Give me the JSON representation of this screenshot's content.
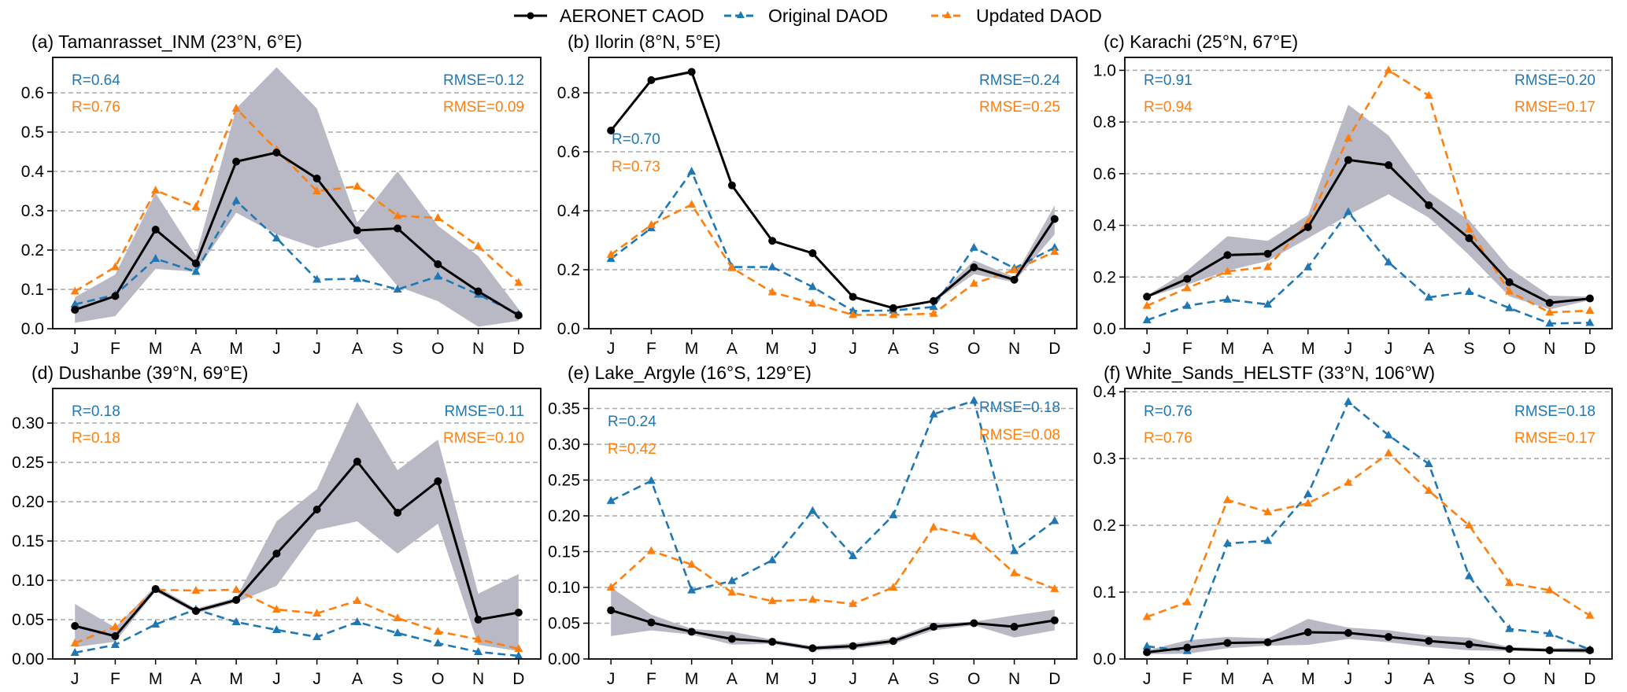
{
  "legend": {
    "entries": [
      {
        "key": "aeronet",
        "label": "AERONET CAOD",
        "color": "#000000",
        "style": "solid",
        "marker": "circle"
      },
      {
        "key": "original",
        "label": "Original DAOD",
        "color": "#1f77b4",
        "style": "dashed",
        "marker": "triangle"
      },
      {
        "key": "updated",
        "label": "Updated DAOD",
        "color": "#ff7f0e",
        "style": "dashed",
        "marker": "triangle"
      }
    ],
    "placement": "top-center"
  },
  "colors": {
    "aeronet": "#000000",
    "original": "#1f77b4",
    "updated": "#ff7f0e",
    "band": "#b9b9c6",
    "grid": "#a8a8a8"
  },
  "chart_data": [
    {
      "type": "line",
      "panel": "a",
      "title": "(a) Tamanrasset_INM (23°N, 6°E)",
      "x": [
        "J",
        "F",
        "M",
        "A",
        "M",
        "J",
        "J",
        "A",
        "S",
        "O",
        "N",
        "D"
      ],
      "ylim": [
        0.0,
        0.69
      ],
      "yticks": [
        0.0,
        0.1,
        0.2,
        0.3,
        0.4,
        0.5,
        0.6
      ],
      "ytick_labels": [
        "0.0",
        "0.1",
        "0.2",
        "0.3",
        "0.4",
        "0.5",
        "0.6"
      ],
      "grid": "horizontal-dashed",
      "series": [
        {
          "name": "AERONET CAOD",
          "key": "aeronet",
          "values": [
            0.048,
            0.083,
            0.252,
            0.166,
            0.425,
            0.448,
            0.382,
            0.25,
            0.255,
            0.164,
            0.095,
            0.034
          ],
          "band_low": [
            0.015,
            0.032,
            0.152,
            0.145,
            0.295,
            0.24,
            0.205,
            0.23,
            0.108,
            0.07,
            0.005,
            0.02
          ],
          "band_high": [
            0.08,
            0.138,
            0.345,
            0.185,
            0.56,
            0.665,
            0.56,
            0.27,
            0.4,
            0.262,
            0.185,
            0.05
          ]
        },
        {
          "name": "Original DAOD",
          "key": "original",
          "values": [
            0.062,
            0.086,
            0.178,
            0.145,
            0.325,
            0.23,
            0.125,
            0.127,
            0.1,
            0.133,
            0.087,
            0.037
          ]
        },
        {
          "name": "Updated DAOD",
          "key": "updated",
          "values": [
            0.095,
            0.157,
            0.352,
            0.31,
            0.56,
            0.455,
            0.35,
            0.362,
            0.287,
            0.282,
            0.21,
            0.117
          ]
        }
      ],
      "stats": {
        "r_original": "R=0.64",
        "r_updated": "R=0.76",
        "rmse_original": "RMSE=0.12",
        "rmse_updated": "RMSE=0.09"
      }
    },
    {
      "type": "line",
      "panel": "b",
      "title": "(b) Ilorin (8°N, 5°E)",
      "x": [
        "J",
        "F",
        "M",
        "A",
        "M",
        "J",
        "J",
        "A",
        "S",
        "O",
        "N",
        "D"
      ],
      "ylim": [
        0.0,
        0.92
      ],
      "yticks": [
        0.0,
        0.2,
        0.4,
        0.6,
        0.8
      ],
      "ytick_labels": [
        "0.0",
        "0.2",
        "0.4",
        "0.6",
        "0.8"
      ],
      "grid": "horizontal-dashed",
      "series": [
        {
          "name": "AERONET CAOD",
          "key": "aeronet",
          "values": [
            0.672,
            0.843,
            0.871,
            0.486,
            0.298,
            0.256,
            0.108,
            0.07,
            0.094,
            0.208,
            0.166,
            0.372
          ],
          "band_low": [
            0.668,
            0.838,
            0.866,
            0.482,
            0.294,
            0.252,
            0.104,
            0.066,
            0.09,
            0.185,
            0.158,
            0.32
          ],
          "band_high": [
            0.676,
            0.848,
            0.876,
            0.49,
            0.302,
            0.26,
            0.112,
            0.074,
            0.098,
            0.232,
            0.175,
            0.418
          ]
        },
        {
          "name": "Original DAOD",
          "key": "original",
          "values": [
            0.237,
            0.341,
            0.533,
            0.209,
            0.209,
            0.142,
            0.06,
            0.062,
            0.074,
            0.275,
            0.205,
            0.275
          ]
        },
        {
          "name": "Updated DAOD",
          "key": "updated",
          "values": [
            0.251,
            0.352,
            0.421,
            0.206,
            0.124,
            0.086,
            0.047,
            0.047,
            0.051,
            0.153,
            0.199,
            0.261
          ]
        }
      ],
      "stats": {
        "r_original": "R=0.70",
        "r_updated": "R=0.73",
        "rmse_original": "RMSE=0.24",
        "rmse_updated": "RMSE=0.25"
      }
    },
    {
      "type": "line",
      "panel": "c",
      "title": "(c) Karachi (25°N, 67°E)",
      "x": [
        "J",
        "F",
        "M",
        "A",
        "M",
        "J",
        "J",
        "A",
        "S",
        "O",
        "N",
        "D"
      ],
      "ylim": [
        0.0,
        1.05
      ],
      "yticks": [
        0.0,
        0.2,
        0.4,
        0.6,
        0.8,
        1.0
      ],
      "ytick_labels": [
        "0.0",
        "0.2",
        "0.4",
        "0.6",
        "0.8",
        "1.0"
      ],
      "grid": "horizontal-dashed",
      "series": [
        {
          "name": "AERONET CAOD",
          "key": "aeronet",
          "values": [
            0.124,
            0.193,
            0.285,
            0.29,
            0.393,
            0.653,
            0.633,
            0.478,
            0.35,
            0.18,
            0.1,
            0.117
          ],
          "band_low": [
            0.12,
            0.17,
            0.225,
            0.262,
            0.35,
            0.44,
            0.52,
            0.43,
            0.285,
            0.125,
            0.075,
            0.11
          ],
          "band_high": [
            0.128,
            0.225,
            0.358,
            0.34,
            0.44,
            0.867,
            0.748,
            0.528,
            0.42,
            0.235,
            0.128,
            0.124
          ]
        },
        {
          "name": "Original DAOD",
          "key": "original",
          "values": [
            0.033,
            0.089,
            0.113,
            0.094,
            0.238,
            0.452,
            0.257,
            0.121,
            0.143,
            0.08,
            0.02,
            0.023
          ]
        },
        {
          "name": "Updated DAOD",
          "key": "updated",
          "values": [
            0.089,
            0.157,
            0.222,
            0.239,
            0.413,
            0.737,
            1.0,
            0.902,
            0.385,
            0.144,
            0.063,
            0.07
          ]
        }
      ],
      "stats": {
        "r_original": "R=0.91",
        "r_updated": "R=0.94",
        "rmse_original": "RMSE=0.20",
        "rmse_updated": "RMSE=0.17"
      }
    },
    {
      "type": "line",
      "panel": "d",
      "title": "(d) Dushanbe (39°N, 69°E)",
      "x": [
        "J",
        "F",
        "M",
        "A",
        "M",
        "J",
        "J",
        "A",
        "S",
        "O",
        "N",
        "D"
      ],
      "ylim": [
        0.0,
        0.344
      ],
      "yticks": [
        0.0,
        0.05,
        0.1,
        0.15,
        0.2,
        0.25,
        0.3
      ],
      "ytick_labels": [
        "0.00",
        "0.05",
        "0.10",
        "0.15",
        "0.20",
        "0.25",
        "0.30"
      ],
      "grid": "horizontal-dashed",
      "series": [
        {
          "name": "AERONET CAOD",
          "key": "aeronet",
          "values": [
            0.042,
            0.029,
            0.089,
            0.061,
            0.075,
            0.134,
            0.19,
            0.251,
            0.186,
            0.226,
            0.05,
            0.059
          ],
          "band_low": [
            0.015,
            0.022,
            0.086,
            0.058,
            0.072,
            0.093,
            0.164,
            0.175,
            0.134,
            0.172,
            0.018,
            0.01
          ],
          "band_high": [
            0.07,
            0.04,
            0.093,
            0.064,
            0.078,
            0.175,
            0.216,
            0.327,
            0.24,
            0.279,
            0.083,
            0.108
          ]
        },
        {
          "name": "Original DAOD",
          "key": "original",
          "values": [
            0.008,
            0.018,
            0.044,
            0.063,
            0.047,
            0.037,
            0.028,
            0.047,
            0.033,
            0.02,
            0.009,
            0.004
          ]
        },
        {
          "name": "Updated DAOD",
          "key": "updated",
          "values": [
            0.02,
            0.041,
            0.088,
            0.087,
            0.088,
            0.063,
            0.058,
            0.074,
            0.052,
            0.035,
            0.025,
            0.013
          ]
        }
      ],
      "stats": {
        "r_original": "R=0.18",
        "r_updated": "R=0.18",
        "rmse_original": "RMSE=0.11",
        "rmse_updated": "RMSE=0.10"
      }
    },
    {
      "type": "line",
      "panel": "e",
      "title": "(e) Lake_Argyle (16°S, 129°E)",
      "x": [
        "J",
        "F",
        "M",
        "A",
        "M",
        "J",
        "J",
        "A",
        "S",
        "O",
        "N",
        "D"
      ],
      "ylim": [
        0.0,
        0.378
      ],
      "yticks": [
        0.0,
        0.05,
        0.1,
        0.15,
        0.2,
        0.25,
        0.3,
        0.35
      ],
      "ytick_labels": [
        "0.00",
        "0.05",
        "0.10",
        "0.15",
        "0.20",
        "0.25",
        "0.30",
        "0.35"
      ],
      "grid": "horizontal-dashed",
      "series": [
        {
          "name": "AERONET CAOD",
          "key": "aeronet",
          "values": [
            0.068,
            0.051,
            0.038,
            0.028,
            0.024,
            0.015,
            0.018,
            0.025,
            0.045,
            0.05,
            0.045,
            0.054
          ],
          "band_low": [
            0.032,
            0.04,
            0.034,
            0.02,
            0.021,
            0.012,
            0.014,
            0.021,
            0.04,
            0.047,
            0.03,
            0.04
          ],
          "band_high": [
            0.1,
            0.062,
            0.042,
            0.038,
            0.027,
            0.018,
            0.022,
            0.029,
            0.05,
            0.052,
            0.061,
            0.069
          ]
        },
        {
          "name": "Original DAOD",
          "key": "original",
          "values": [
            0.221,
            0.249,
            0.096,
            0.109,
            0.138,
            0.207,
            0.144,
            0.201,
            0.342,
            0.361,
            0.151,
            0.193
          ]
        },
        {
          "name": "Updated DAOD",
          "key": "updated",
          "values": [
            0.1,
            0.151,
            0.132,
            0.093,
            0.081,
            0.083,
            0.077,
            0.1,
            0.184,
            0.171,
            0.12,
            0.098
          ]
        }
      ],
      "stats": {
        "r_original": "R=0.24",
        "r_updated": "R=0.42",
        "rmse_original": "RMSE=0.18",
        "rmse_updated": "RMSE=0.08"
      }
    },
    {
      "type": "line",
      "panel": "f",
      "title": "(f) White_Sands_HELSTF (33°N, 106°W)",
      "x": [
        "J",
        "F",
        "M",
        "A",
        "M",
        "J",
        "J",
        "A",
        "S",
        "O",
        "N",
        "D"
      ],
      "ylim": [
        0.0,
        0.405
      ],
      "yticks": [
        0.0,
        0.1,
        0.2,
        0.3,
        0.4
      ],
      "ytick_labels": [
        "0.0",
        "0.1",
        "0.2",
        "0.3",
        "0.4"
      ],
      "grid": "horizontal-dashed",
      "series": [
        {
          "name": "AERONET CAOD",
          "key": "aeronet",
          "values": [
            0.01,
            0.017,
            0.024,
            0.025,
            0.04,
            0.039,
            0.033,
            0.027,
            0.022,
            0.015,
            0.013,
            0.013
          ],
          "band_low": [
            0.007,
            0.008,
            0.016,
            0.02,
            0.021,
            0.03,
            0.025,
            0.018,
            0.013,
            0.012,
            0.011,
            0.009
          ],
          "band_high": [
            0.013,
            0.028,
            0.033,
            0.031,
            0.06,
            0.047,
            0.043,
            0.035,
            0.032,
            0.018,
            0.016,
            0.017
          ]
        },
        {
          "name": "Original DAOD",
          "key": "original",
          "values": [
            0.019,
            0.012,
            0.173,
            0.177,
            0.247,
            0.385,
            0.335,
            0.292,
            0.124,
            0.045,
            0.038,
            0.014
          ]
        },
        {
          "name": "Updated DAOD",
          "key": "updated",
          "values": [
            0.063,
            0.085,
            0.238,
            0.22,
            0.233,
            0.264,
            0.308,
            0.252,
            0.2,
            0.114,
            0.103,
            0.065
          ]
        }
      ],
      "stats": {
        "r_original": "R=0.76",
        "r_updated": "R=0.76",
        "rmse_original": "RMSE=0.18",
        "rmse_updated": "RMSE=0.17"
      }
    }
  ]
}
